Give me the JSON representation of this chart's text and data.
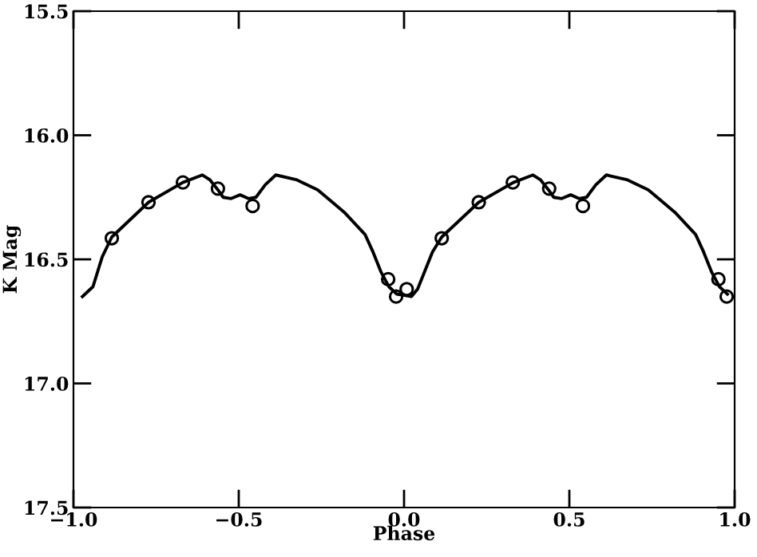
{
  "chart_data": {
    "type": "line",
    "xlabel": "Phase",
    "ylabel": "K Mag",
    "xlim": [
      -1.0,
      1.0
    ],
    "ylim": [
      17.5,
      15.5
    ],
    "xticks": [
      {
        "value": -1.0,
        "label": "−1.0"
      },
      {
        "value": -0.5,
        "label": "−0.5"
      },
      {
        "value": 0.0,
        "label": "0.0"
      },
      {
        "value": 0.5,
        "label": "0.5"
      },
      {
        "value": 1.0,
        "label": "1.0"
      }
    ],
    "yticks": [
      15.5,
      {
        "value": 16.0,
        "label": "16.0"
      },
      16.5,
      {
        "value": 17.0,
        "label": "17.0"
      },
      17.5
    ],
    "grid": false,
    "legend": false,
    "series": [
      {
        "color": "#000000",
        "marker": "none",
        "line_style": "solid",
        "x": [
          -0.973,
          -0.941,
          -0.913,
          -0.884,
          -0.773,
          -0.669,
          -0.61,
          -0.587,
          -0.563,
          -0.547,
          -0.523,
          -0.496,
          -0.471,
          -0.448,
          -0.42,
          -0.388,
          -0.324,
          -0.261,
          -0.181,
          -0.118,
          -0.094,
          -0.07,
          -0.046,
          -0.022,
          0.002,
          0.022,
          0.041,
          0.065,
          0.086,
          0.114,
          0.226,
          0.331,
          0.39,
          0.413,
          0.437,
          0.453,
          0.477,
          0.504,
          0.529,
          0.552,
          0.58,
          0.612,
          0.676,
          0.739,
          0.819,
          0.882,
          0.906,
          0.93,
          0.954,
          0.978
        ],
        "values": [
          16.65,
          16.61,
          16.49,
          16.41,
          16.27,
          16.19,
          16.16,
          16.18,
          16.22,
          16.25,
          16.255,
          16.24,
          16.255,
          16.25,
          16.2,
          16.16,
          16.18,
          16.22,
          16.31,
          16.4,
          16.47,
          16.55,
          16.61,
          16.64,
          16.645,
          16.65,
          16.62,
          16.54,
          16.47,
          16.41,
          16.27,
          16.19,
          16.16,
          16.18,
          16.22,
          16.25,
          16.255,
          16.24,
          16.255,
          16.25,
          16.2,
          16.16,
          16.18,
          16.22,
          16.31,
          16.4,
          16.47,
          16.55,
          16.61,
          16.64
        ]
      },
      {
        "type": "scatter",
        "color": "#000000",
        "marker": "circle",
        "x": [
          -0.884,
          -0.773,
          -0.669,
          -0.563,
          -0.458,
          -0.048,
          -0.024,
          0.008,
          0.114,
          0.226,
          0.329,
          0.439,
          0.541,
          0.951,
          0.976
        ],
        "values": [
          16.415,
          16.27,
          16.19,
          16.215,
          16.285,
          16.58,
          16.65,
          16.62,
          16.415,
          16.27,
          16.19,
          16.215,
          16.285,
          16.58,
          16.65
        ]
      }
    ]
  }
}
